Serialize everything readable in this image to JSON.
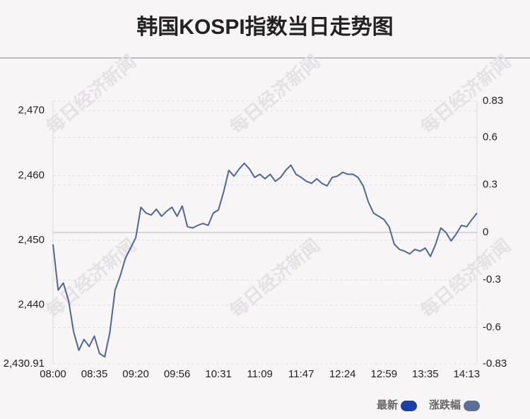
{
  "chart_data": {
    "type": "line",
    "title": "韩国KOSPI指数当日走势图",
    "watermark": "每日经济新闻",
    "categories": [
      "08:00",
      null,
      null,
      null,
      null,
      null,
      null,
      null,
      "08:35",
      null,
      null,
      null,
      null,
      null,
      null,
      null,
      "09:20",
      null,
      null,
      null,
      null,
      null,
      null,
      null,
      "09:56",
      null,
      null,
      null,
      null,
      null,
      null,
      null,
      "10:31",
      null,
      null,
      null,
      null,
      null,
      null,
      null,
      "11:09",
      null,
      null,
      null,
      null,
      null,
      null,
      null,
      "11:47",
      null,
      null,
      null,
      null,
      null,
      null,
      null,
      "12:24",
      null,
      null,
      null,
      null,
      null,
      null,
      null,
      "12:59",
      null,
      null,
      null,
      null,
      null,
      null,
      null,
      "13:35",
      null,
      null,
      null,
      null,
      null,
      null,
      null,
      "14:13",
      null,
      null
    ],
    "series": [
      {
        "name": "最新",
        "color": "#4f6796",
        "values": [
          2449.35,
          2442.3,
          2443.4,
          2440.7,
          2435.8,
          2433.0,
          2434.7,
          2433.6,
          2435.2,
          2432.5,
          2432.0,
          2435.8,
          2442.3,
          2444.5,
          2447.2,
          2448.8,
          2450.4,
          2455.1,
          2454.2,
          2453.9,
          2454.8,
          2453.7,
          2454.5,
          2455.1,
          2453.7,
          2455.3,
          2452.1,
          2451.9,
          2452.3,
          2452.6,
          2452.3,
          2454.2,
          2454.7,
          2457.5,
          2460.8,
          2459.9,
          2461.0,
          2461.9,
          2461.0,
          2459.7,
          2460.2,
          2459.5,
          2460.2,
          2459.1,
          2459.7,
          2460.8,
          2461.6,
          2460.2,
          2459.7,
          2459.1,
          2458.8,
          2459.5,
          2458.8,
          2458.4,
          2459.7,
          2459.9,
          2460.5,
          2460.2,
          2460.2,
          2459.7,
          2458.4,
          2455.9,
          2454.2,
          2453.7,
          2453.2,
          2452.1,
          2449.4,
          2448.6,
          2448.3,
          2447.9,
          2448.6,
          2448.3,
          2448.8,
          2447.5,
          2449.4,
          2451.9,
          2451.2,
          2449.9,
          2451.0,
          2452.3,
          2452.1,
          2453.2,
          2454.2
        ]
      }
    ],
    "legend": [
      {
        "name": "最新",
        "color": "#1a3fa6"
      },
      {
        "name": "涨跌幅",
        "color": "#5c6f99"
      }
    ],
    "ylim": [
      2430.91,
      2471.5
    ],
    "yticks": [
      {
        "value": 2430.91,
        "label": "2,430.91"
      },
      {
        "value": 2440,
        "label": "2,440"
      },
      {
        "value": 2450,
        "label": "2,450"
      },
      {
        "value": 2460,
        "label": "2,460"
      },
      {
        "value": 2470,
        "label": "2,470"
      }
    ],
    "y2lim": [
      -0.83,
      0.83
    ],
    "y2ticks": [
      -0.83,
      -0.6,
      -0.3,
      0,
      0.3,
      0.6,
      0.83
    ],
    "grid": true
  }
}
